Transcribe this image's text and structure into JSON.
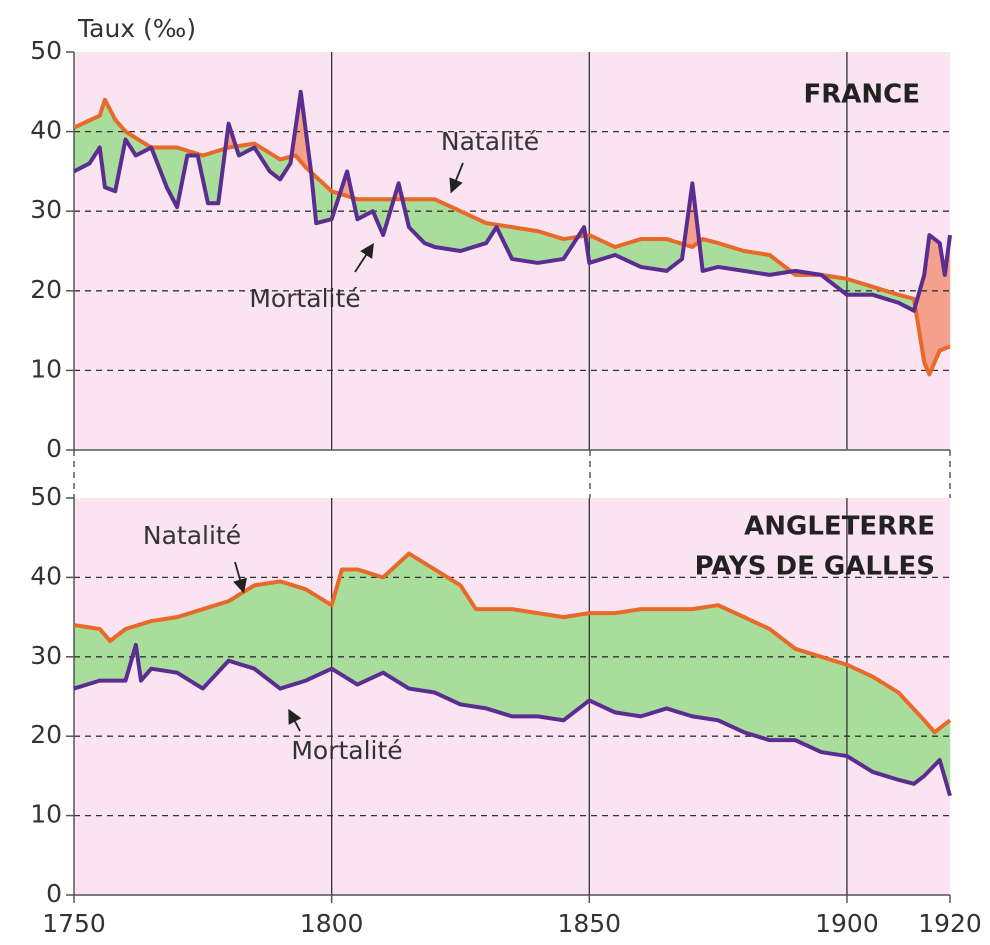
{
  "chart_data": [
    {
      "type": "line",
      "title": "FRANCE",
      "ylabel": "Taux (‰)",
      "xlim": [
        1750,
        1920
      ],
      "ylim": [
        0,
        50
      ],
      "yticks": [
        0,
        10,
        20,
        30,
        40,
        50
      ],
      "grid": true,
      "surplus_color": "#a9dd9c",
      "deficit_color": "#f3a08c",
      "series": [
        {
          "name": "Natalité",
          "color": "#e8692a",
          "x": [
            1750,
            1755,
            1756,
            1758,
            1760,
            1765,
            1770,
            1775,
            1780,
            1785,
            1790,
            1793,
            1795,
            1800,
            1805,
            1810,
            1815,
            1820,
            1825,
            1830,
            1835,
            1840,
            1845,
            1850,
            1855,
            1860,
            1865,
            1870,
            1872,
            1875,
            1880,
            1885,
            1890,
            1895,
            1900,
            1905,
            1910,
            1913,
            1915,
            1916,
            1918,
            1920
          ],
          "values": [
            40.5,
            42,
            44,
            41.5,
            40,
            38,
            38,
            37,
            38,
            38.5,
            36.5,
            37,
            35.5,
            32.5,
            31.5,
            31.5,
            31.5,
            31.5,
            30,
            28.5,
            28,
            27.5,
            26.5,
            27,
            25.5,
            26.5,
            26.5,
            25.5,
            26.5,
            26,
            25,
            24.5,
            22,
            22,
            21.5,
            20.5,
            19.5,
            19,
            11,
            9.5,
            12.5,
            13
          ]
        },
        {
          "name": "Mortalité",
          "color": "#5b2d91",
          "x": [
            1750,
            1753,
            1755,
            1756,
            1758,
            1760,
            1762,
            1765,
            1768,
            1770,
            1772,
            1774,
            1776,
            1778,
            1780,
            1782,
            1785,
            1788,
            1790,
            1792,
            1794,
            1796,
            1797,
            1800,
            1803,
            1805,
            1808,
            1810,
            1813,
            1815,
            1818,
            1820,
            1825,
            1830,
            1832,
            1835,
            1840,
            1845,
            1849,
            1850,
            1855,
            1860,
            1865,
            1868,
            1870,
            1872,
            1875,
            1880,
            1885,
            1890,
            1895,
            1900,
            1905,
            1910,
            1913,
            1915,
            1916,
            1918,
            1919,
            1920
          ],
          "values": [
            35,
            36,
            38,
            33,
            32.5,
            39,
            37,
            38,
            33,
            30.5,
            37,
            37,
            31,
            31,
            41,
            37,
            38,
            35,
            34,
            36,
            45,
            35,
            28.5,
            29,
            35,
            29,
            30,
            27,
            33.5,
            28,
            26,
            25.5,
            25,
            26,
            28,
            24,
            23.5,
            24,
            28,
            23.5,
            24.5,
            23,
            22.5,
            24,
            33.5,
            22.5,
            23,
            22.5,
            22,
            22.5,
            22,
            19.5,
            19.5,
            18.5,
            17.5,
            22,
            27,
            26,
            22,
            27
          ]
        }
      ]
    },
    {
      "type": "line",
      "title": [
        "ANGLETERRE",
        "PAYS DE GALLES"
      ],
      "xlim": [
        1750,
        1920
      ],
      "xticks": [
        1750,
        1800,
        1850,
        1900,
        1920
      ],
      "ylim": [
        0,
        50
      ],
      "yticks": [
        0,
        10,
        20,
        30,
        40,
        50
      ],
      "grid": true,
      "surplus_color": "#a9dd9c",
      "deficit_color": "#f3a08c",
      "series": [
        {
          "name": "Natalité",
          "color": "#e8692a",
          "x": [
            1750,
            1755,
            1757,
            1760,
            1765,
            1770,
            1775,
            1780,
            1785,
            1790,
            1795,
            1800,
            1802,
            1805,
            1810,
            1815,
            1820,
            1825,
            1828,
            1830,
            1835,
            1840,
            1845,
            1850,
            1855,
            1860,
            1865,
            1870,
            1875,
            1880,
            1885,
            1890,
            1895,
            1900,
            1905,
            1910,
            1915,
            1917,
            1920
          ],
          "values": [
            34,
            33.5,
            32,
            33.5,
            34.5,
            35,
            36,
            37,
            39,
            39.5,
            38.5,
            36.5,
            41,
            41,
            40,
            43,
            41,
            39,
            36,
            36,
            36,
            35.5,
            35,
            35.5,
            35.5,
            36,
            36,
            36,
            36.5,
            35,
            33.5,
            31,
            30,
            29,
            27.5,
            25.5,
            22,
            20.5,
            22
          ]
        },
        {
          "name": "Mortalité",
          "color": "#5b2d91",
          "x": [
            1750,
            1755,
            1760,
            1762,
            1763,
            1765,
            1770,
            1775,
            1780,
            1785,
            1790,
            1795,
            1800,
            1805,
            1810,
            1815,
            1820,
            1825,
            1830,
            1835,
            1840,
            1845,
            1850,
            1855,
            1860,
            1865,
            1870,
            1875,
            1880,
            1885,
            1890,
            1895,
            1900,
            1905,
            1910,
            1913,
            1915,
            1918,
            1920
          ],
          "values": [
            26,
            27,
            27,
            31.5,
            27,
            28.5,
            28,
            26,
            29.5,
            28.5,
            26,
            27,
            28.5,
            26.5,
            28,
            26,
            25.5,
            24,
            23.5,
            22.5,
            22.5,
            22,
            24.5,
            23,
            22.5,
            23.5,
            22.5,
            22,
            20.5,
            19.5,
            19.5,
            18,
            17.5,
            15.5,
            14.5,
            14,
            15,
            17,
            12.5
          ]
        }
      ]
    }
  ]
}
